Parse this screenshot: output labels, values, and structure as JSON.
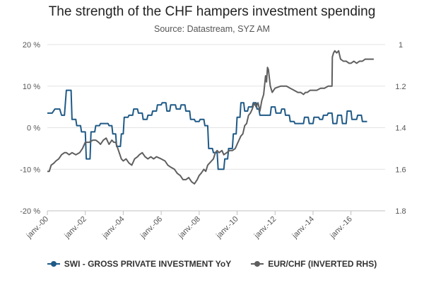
{
  "title": "The strength of the CHF hampers investment spending",
  "subtitle": "Source: Datastream, SYZ AM",
  "colors": {
    "swi": "#1f5a87",
    "eurchf": "#5f5f5f",
    "grid": "#e3e3e3",
    "axis": "#c0c0c0"
  },
  "legend": [
    {
      "label": "SWI - GROSS PRIVATE INVESTMENT YoY",
      "color": "#1f5a87"
    },
    {
      "label": "EUR/CHF (INVERTED RHS)",
      "color": "#5f5f5f"
    }
  ],
  "chart_data": {
    "type": "line",
    "title": "The strength of the CHF hampers investment spending",
    "subtitle": "Source: Datastream, SYZ AM",
    "x_ticks": [
      "janv.-00",
      "janv.-02",
      "janv.-04",
      "janv.-06",
      "janv.-08",
      "janv.-10",
      "janv.-12",
      "janv.-14",
      "janv.-16"
    ],
    "x_range": [
      2000.0,
      2017.8
    ],
    "y_left": {
      "min": -20,
      "max": 20,
      "ticks": [
        20,
        10,
        0,
        -10,
        -20
      ],
      "tick_labels": [
        "20 %",
        "10 %",
        "0 %",
        "-10 %",
        "-20 %"
      ]
    },
    "y_right": {
      "min": 1.0,
      "max": 1.8,
      "inverted": true,
      "ticks": [
        1.0,
        1.2,
        1.4,
        1.6,
        1.8
      ],
      "tick_labels": [
        "1",
        "1.2",
        "1.4",
        "1.6",
        "1.8"
      ]
    },
    "grid": true,
    "legend_position": "bottom",
    "series": [
      {
        "name": "SWI - GROSS PRIVATE INVESTMENT YoY",
        "axis": "left",
        "color": "#1f5a87",
        "points": [
          [
            2000.0,
            3.5
          ],
          [
            2000.25,
            3.5
          ],
          [
            2000.4,
            4.5
          ],
          [
            2000.65,
            4.5
          ],
          [
            2000.75,
            3.0
          ],
          [
            2000.9,
            3.0
          ],
          [
            2001.0,
            9.0
          ],
          [
            2001.25,
            9.0
          ],
          [
            2001.3,
            2.0
          ],
          [
            2001.5,
            2.0
          ],
          [
            2001.55,
            0.5
          ],
          [
            2001.75,
            0.5
          ],
          [
            2001.8,
            -1.0
          ],
          [
            2002.0,
            -1.0
          ],
          [
            2002.05,
            -7.5
          ],
          [
            2002.25,
            -7.5
          ],
          [
            2002.3,
            -1.0
          ],
          [
            2002.5,
            -1.0
          ],
          [
            2002.55,
            0.5
          ],
          [
            2002.75,
            0.5
          ],
          [
            2002.8,
            1.0
          ],
          [
            2003.2,
            1.0
          ],
          [
            2003.25,
            0.5
          ],
          [
            2003.4,
            0.5
          ],
          [
            2003.45,
            -1.5
          ],
          [
            2003.6,
            -1.5
          ],
          [
            2003.65,
            -4.5
          ],
          [
            2003.85,
            -4.5
          ],
          [
            2003.9,
            -1.5
          ],
          [
            2004.0,
            -1.5
          ],
          [
            2004.05,
            2.5
          ],
          [
            2004.25,
            2.5
          ],
          [
            2004.3,
            3.0
          ],
          [
            2004.5,
            3.0
          ],
          [
            2004.55,
            4.5
          ],
          [
            2004.75,
            4.5
          ],
          [
            2004.8,
            3.5
          ],
          [
            2005.0,
            3.5
          ],
          [
            2005.05,
            2.0
          ],
          [
            2005.25,
            2.0
          ],
          [
            2005.3,
            3.0
          ],
          [
            2005.5,
            3.0
          ],
          [
            2005.55,
            4.0
          ],
          [
            2005.75,
            4.0
          ],
          [
            2005.8,
            5.5
          ],
          [
            2006.0,
            5.5
          ],
          [
            2006.05,
            6.0
          ],
          [
            2006.25,
            6.0
          ],
          [
            2006.3,
            4.0
          ],
          [
            2006.45,
            4.0
          ],
          [
            2006.5,
            5.5
          ],
          [
            2006.75,
            5.5
          ],
          [
            2006.8,
            4.5
          ],
          [
            2007.0,
            4.5
          ],
          [
            2007.05,
            5.5
          ],
          [
            2007.25,
            5.5
          ],
          [
            2007.3,
            4.0
          ],
          [
            2007.5,
            4.0
          ],
          [
            2007.55,
            2.0
          ],
          [
            2007.75,
            2.0
          ],
          [
            2007.8,
            1.5
          ],
          [
            2008.0,
            1.5
          ],
          [
            2008.05,
            2.0
          ],
          [
            2008.25,
            2.0
          ],
          [
            2008.3,
            0.5
          ],
          [
            2008.45,
            0.5
          ],
          [
            2008.5,
            -5.0
          ],
          [
            2008.7,
            -5.0
          ],
          [
            2008.75,
            -6.0
          ],
          [
            2008.95,
            -6.0
          ],
          [
            2009.0,
            -10.0
          ],
          [
            2009.3,
            -10.0
          ],
          [
            2009.35,
            -7.5
          ],
          [
            2009.5,
            -7.5
          ],
          [
            2009.55,
            -5.0
          ],
          [
            2009.75,
            -5.0
          ],
          [
            2009.8,
            -1.5
          ],
          [
            2009.95,
            -1.5
          ],
          [
            2010.0,
            2.5
          ],
          [
            2010.15,
            2.5
          ],
          [
            2010.2,
            6.0
          ],
          [
            2010.35,
            6.0
          ],
          [
            2010.4,
            4.0
          ],
          [
            2010.55,
            4.0
          ],
          [
            2010.6,
            5.0
          ],
          [
            2010.8,
            5.0
          ],
          [
            2010.85,
            6.0
          ],
          [
            2011.0,
            6.0
          ],
          [
            2011.05,
            4.5
          ],
          [
            2011.15,
            4.5
          ],
          [
            2011.2,
            3.0
          ],
          [
            2011.75,
            3.0
          ],
          [
            2011.8,
            5.0
          ],
          [
            2012.0,
            5.0
          ],
          [
            2012.05,
            3.5
          ],
          [
            2012.3,
            3.5
          ],
          [
            2012.35,
            4.5
          ],
          [
            2012.5,
            4.5
          ],
          [
            2012.55,
            3.0
          ],
          [
            2012.75,
            3.0
          ],
          [
            2012.8,
            1.5
          ],
          [
            2013.0,
            1.5
          ],
          [
            2013.05,
            1.0
          ],
          [
            2013.5,
            1.0
          ],
          [
            2013.55,
            2.5
          ],
          [
            2013.75,
            2.5
          ],
          [
            2013.8,
            1.0
          ],
          [
            2014.0,
            1.0
          ],
          [
            2014.05,
            2.5
          ],
          [
            2014.3,
            2.5
          ],
          [
            2014.35,
            2.0
          ],
          [
            2014.5,
            2.0
          ],
          [
            2014.55,
            3.0
          ],
          [
            2014.75,
            3.0
          ],
          [
            2014.8,
            3.5
          ],
          [
            2015.0,
            3.5
          ],
          [
            2015.05,
            1.0
          ],
          [
            2015.25,
            1.0
          ],
          [
            2015.3,
            3.0
          ],
          [
            2015.5,
            3.0
          ],
          [
            2015.55,
            1.0
          ],
          [
            2015.75,
            1.0
          ],
          [
            2015.8,
            4.0
          ],
          [
            2016.0,
            4.0
          ],
          [
            2016.05,
            2.0
          ],
          [
            2016.3,
            2.0
          ],
          [
            2016.35,
            3.0
          ],
          [
            2016.55,
            3.0
          ],
          [
            2016.6,
            1.5
          ],
          [
            2016.85,
            1.5
          ]
        ]
      },
      {
        "name": "EUR/CHF (INVERTED RHS)",
        "axis": "right",
        "color": "#5f5f5f",
        "points": [
          [
            2000.0,
            1.61
          ],
          [
            2000.1,
            1.61
          ],
          [
            2000.2,
            1.58
          ],
          [
            2000.35,
            1.57
          ],
          [
            2000.45,
            1.56
          ],
          [
            2000.6,
            1.55
          ],
          [
            2000.75,
            1.53
          ],
          [
            2000.9,
            1.52
          ],
          [
            2001.0,
            1.52
          ],
          [
            2001.15,
            1.53
          ],
          [
            2001.3,
            1.52
          ],
          [
            2001.5,
            1.53
          ],
          [
            2001.7,
            1.52
          ],
          [
            2001.85,
            1.5
          ],
          [
            2002.0,
            1.47
          ],
          [
            2002.2,
            1.47
          ],
          [
            2002.4,
            1.46
          ],
          [
            2002.55,
            1.46
          ],
          [
            2002.7,
            1.47
          ],
          [
            2002.8,
            1.48
          ],
          [
            2002.95,
            1.46
          ],
          [
            2003.1,
            1.45
          ],
          [
            2003.25,
            1.48
          ],
          [
            2003.4,
            1.46
          ],
          [
            2003.5,
            1.47
          ],
          [
            2003.6,
            1.47
          ],
          [
            2003.75,
            1.51
          ],
          [
            2003.9,
            1.55
          ],
          [
            2004.0,
            1.56
          ],
          [
            2004.15,
            1.55
          ],
          [
            2004.3,
            1.57
          ],
          [
            2004.45,
            1.58
          ],
          [
            2004.6,
            1.55
          ],
          [
            2004.75,
            1.54
          ],
          [
            2004.85,
            1.53
          ],
          [
            2005.0,
            1.52
          ],
          [
            2005.15,
            1.54
          ],
          [
            2005.3,
            1.55
          ],
          [
            2005.45,
            1.54
          ],
          [
            2005.6,
            1.55
          ],
          [
            2005.75,
            1.54
          ],
          [
            2006.0,
            1.55
          ],
          [
            2006.2,
            1.56
          ],
          [
            2006.35,
            1.58
          ],
          [
            2006.5,
            1.59
          ],
          [
            2006.7,
            1.6
          ],
          [
            2006.85,
            1.62
          ],
          [
            2007.0,
            1.63
          ],
          [
            2007.15,
            1.65
          ],
          [
            2007.3,
            1.65
          ],
          [
            2007.45,
            1.64
          ],
          [
            2007.6,
            1.66
          ],
          [
            2007.75,
            1.67
          ],
          [
            2007.9,
            1.65
          ],
          [
            2008.0,
            1.63
          ],
          [
            2008.1,
            1.62
          ],
          [
            2008.25,
            1.6
          ],
          [
            2008.35,
            1.61
          ],
          [
            2008.45,
            1.58
          ],
          [
            2008.55,
            1.57
          ],
          [
            2008.65,
            1.56
          ],
          [
            2008.75,
            1.55
          ],
          [
            2008.85,
            1.52
          ],
          [
            2008.95,
            1.51
          ],
          [
            2009.05,
            1.52
          ],
          [
            2009.2,
            1.51
          ],
          [
            2009.3,
            1.53
          ],
          [
            2009.45,
            1.52
          ],
          [
            2009.6,
            1.51
          ],
          [
            2009.75,
            1.51
          ],
          [
            2009.9,
            1.5
          ],
          [
            2010.0,
            1.48
          ],
          [
            2010.1,
            1.46
          ],
          [
            2010.2,
            1.44
          ],
          [
            2010.3,
            1.43
          ],
          [
            2010.4,
            1.39
          ],
          [
            2010.5,
            1.38
          ],
          [
            2010.6,
            1.34
          ],
          [
            2010.7,
            1.33
          ],
          [
            2010.8,
            1.31
          ],
          [
            2010.9,
            1.28
          ],
          [
            2011.0,
            1.3
          ],
          [
            2011.1,
            1.28
          ],
          [
            2011.2,
            1.32
          ],
          [
            2011.3,
            1.27
          ],
          [
            2011.4,
            1.24
          ],
          [
            2011.5,
            1.15
          ],
          [
            2011.55,
            1.18
          ],
          [
            2011.6,
            1.11
          ],
          [
            2011.65,
            1.12
          ],
          [
            2011.75,
            1.2
          ],
          [
            2011.85,
            1.23
          ],
          [
            2012.0,
            1.21
          ],
          [
            2012.3,
            1.2
          ],
          [
            2012.6,
            1.2
          ],
          [
            2012.8,
            1.21
          ],
          [
            2013.0,
            1.22
          ],
          [
            2013.2,
            1.23
          ],
          [
            2013.35,
            1.23
          ],
          [
            2013.5,
            1.24
          ],
          [
            2013.6,
            1.23
          ],
          [
            2013.7,
            1.23
          ],
          [
            2013.85,
            1.22
          ],
          [
            2014.0,
            1.22
          ],
          [
            2014.2,
            1.22
          ],
          [
            2014.4,
            1.21
          ],
          [
            2014.6,
            1.21
          ],
          [
            2014.8,
            1.2
          ],
          [
            2015.0,
            1.2
          ],
          [
            2015.02,
            1.06
          ],
          [
            2015.08,
            1.04
          ],
          [
            2015.15,
            1.03
          ],
          [
            2015.25,
            1.04
          ],
          [
            2015.35,
            1.03
          ],
          [
            2015.45,
            1.07
          ],
          [
            2015.6,
            1.08
          ],
          [
            2015.75,
            1.08
          ],
          [
            2015.9,
            1.09
          ],
          [
            2016.0,
            1.09
          ],
          [
            2016.15,
            1.08
          ],
          [
            2016.3,
            1.09
          ],
          [
            2016.45,
            1.08
          ],
          [
            2016.6,
            1.08
          ],
          [
            2016.75,
            1.07
          ],
          [
            2016.9,
            1.07
          ],
          [
            2017.05,
            1.07
          ],
          [
            2017.2,
            1.07
          ]
        ]
      }
    ]
  }
}
